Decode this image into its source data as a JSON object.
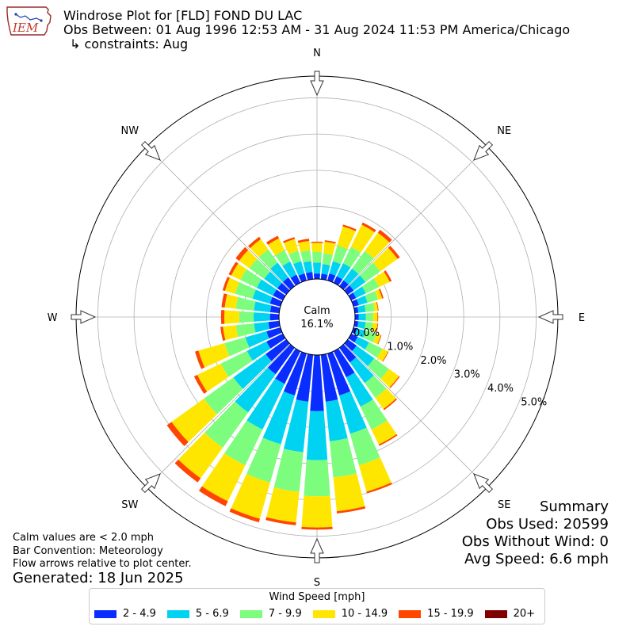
{
  "header": {
    "title": "Windrose Plot for [FLD] FOND DU LAC",
    "obs_between": "Obs Between: 01 Aug 1996 12:53 AM - 31 Aug 2024 11:53 PM America/Chicago",
    "constraints": "↳ constraints: Aug"
  },
  "logo": {
    "text": "IEM",
    "icon": "iowa-state-outline-icon"
  },
  "notes": {
    "calm_def": "Calm values are < 2.0 mph",
    "bar_convention": "Bar Convention: Meteorology",
    "flow_arrows": "Flow arrows relative to plot center.",
    "generated": "Generated: 18 Jun 2025"
  },
  "summary": {
    "heading": "Summary",
    "obs_used": "Obs Used: 20599",
    "obs_without_wind": "Obs Without Wind: 0",
    "avg_speed": "Avg Speed: 6.6 mph"
  },
  "calm": {
    "label": "Calm",
    "value": "16.1%"
  },
  "chart_data": {
    "type": "windrose",
    "direction_labels": [
      "N",
      "NE",
      "E",
      "SE",
      "S",
      "SW",
      "W",
      "NW"
    ],
    "radial_ticks": [
      0,
      1,
      2,
      3,
      4,
      5
    ],
    "radial_tick_labels": [
      "0.0%",
      "1.0%",
      "2.0%",
      "3.0%",
      "4.0%",
      "5.0%"
    ],
    "rmax": 5.6,
    "legend_title": "Wind Speed [mph]",
    "speed_bins": [
      "2 - 4.9",
      "5 - 6.9",
      "7 - 9.9",
      "10 - 14.9",
      "15 - 19.9",
      "20+"
    ],
    "colors": [
      "#0a2dff",
      "#00d3f2",
      "#7dfd7d",
      "#ffe600",
      "#ff4500",
      "#800000"
    ],
    "directions_deg": [
      0,
      10,
      20,
      30,
      40,
      50,
      60,
      70,
      80,
      90,
      100,
      110,
      120,
      130,
      140,
      150,
      160,
      170,
      180,
      190,
      200,
      210,
      220,
      230,
      240,
      250,
      260,
      270,
      280,
      290,
      300,
      310,
      320,
      330,
      340,
      350
    ],
    "cumulative_percent": [
      [
        0.15,
        0.45,
        0.75,
        1.0,
        1.03,
        1.03
      ],
      [
        0.15,
        0.42,
        0.72,
        1.04,
        1.08,
        1.08
      ],
      [
        0.2,
        0.55,
        1.0,
        1.55,
        1.6,
        1.6
      ],
      [
        0.2,
        0.6,
        1.1,
        1.78,
        1.85,
        1.85
      ],
      [
        0.2,
        0.6,
        1.2,
        1.82,
        1.92,
        1.92
      ],
      [
        0.2,
        0.6,
        1.1,
        1.69,
        1.77,
        1.77
      ],
      [
        0.15,
        0.45,
        0.85,
        1.18,
        1.24,
        1.24
      ],
      [
        0.15,
        0.4,
        0.7,
        0.82,
        0.86,
        0.86
      ],
      [
        0.1,
        0.3,
        0.55,
        0.64,
        0.66,
        0.66
      ],
      [
        0.1,
        0.3,
        0.5,
        0.62,
        0.64,
        0.64
      ],
      [
        0.1,
        0.3,
        0.5,
        0.63,
        0.65,
        0.65
      ],
      [
        0.1,
        0.35,
        0.65,
        0.78,
        0.8,
        0.8
      ],
      [
        0.2,
        0.55,
        0.95,
        1.13,
        1.15,
        1.15
      ],
      [
        0.3,
        0.9,
        1.4,
        1.74,
        1.77,
        1.77
      ],
      [
        0.5,
        1.2,
        1.7,
        2.08,
        2.12,
        2.12
      ],
      [
        0.8,
        1.7,
        2.4,
        2.86,
        2.9,
        2.9
      ],
      [
        1.2,
        2.3,
        3.2,
        3.96,
        4.01,
        4.01
      ],
      [
        1.3,
        2.4,
        3.4,
        4.34,
        4.4,
        4.4
      ],
      [
        1.55,
        2.9,
        3.9,
        4.76,
        4.82,
        4.82
      ],
      [
        1.3,
        2.7,
        3.8,
        4.65,
        4.73,
        4.73
      ],
      [
        1.2,
        2.6,
        3.7,
        4.74,
        4.84,
        4.84
      ],
      [
        1.0,
        2.4,
        3.5,
        4.6,
        4.75,
        4.75
      ],
      [
        0.9,
        2.2,
        3.4,
        4.44,
        4.58,
        4.58
      ],
      [
        0.7,
        1.8,
        2.8,
        3.9,
        4.06,
        4.06
      ],
      [
        0.5,
        1.1,
        1.9,
        2.62,
        2.72,
        2.72
      ],
      [
        0.4,
        1.0,
        1.6,
        2.35,
        2.45,
        2.45
      ],
      [
        0.3,
        0.7,
        1.2,
        1.56,
        1.63,
        1.63
      ],
      [
        0.25,
        0.7,
        1.1,
        1.51,
        1.6,
        1.6
      ],
      [
        0.25,
        0.7,
        1.2,
        1.51,
        1.6,
        1.6
      ],
      [
        0.3,
        0.8,
        1.3,
        1.59,
        1.66,
        1.66
      ],
      [
        0.3,
        0.8,
        1.3,
        1.58,
        1.66,
        1.66
      ],
      [
        0.3,
        0.75,
        1.25,
        1.6,
        1.72,
        1.72
      ],
      [
        0.3,
        0.8,
        1.25,
        1.6,
        1.68,
        1.68
      ],
      [
        0.25,
        0.65,
        1.0,
        1.36,
        1.44,
        1.44
      ],
      [
        0.2,
        0.55,
        0.85,
        1.19,
        1.24,
        1.24
      ],
      [
        0.2,
        0.5,
        0.8,
        1.06,
        1.12,
        1.12
      ]
    ]
  }
}
